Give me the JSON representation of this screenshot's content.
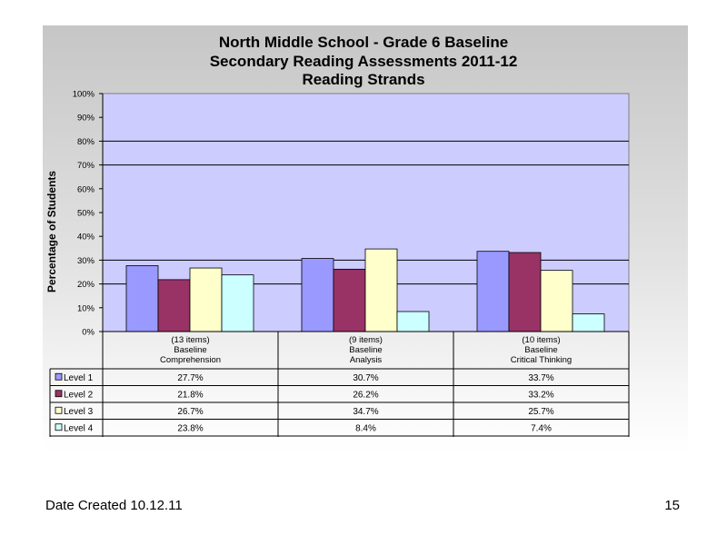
{
  "chart_data": {
    "type": "bar",
    "title": [
      "North Middle School - Grade 6 Baseline",
      "Secondary Reading Assessments 2011-12",
      "Reading Strands"
    ],
    "ylabel": "Percentage of Students",
    "ylim": [
      0,
      100
    ],
    "y_ticks": [
      "0%",
      "10%",
      "20%",
      "30%",
      "40%",
      "50%",
      "60%",
      "70%",
      "80%",
      "90%",
      "100%"
    ],
    "grid": true,
    "categories": [
      {
        "items": "(13 items)",
        "line1": "Baseline",
        "line2": "Comprehension"
      },
      {
        "items": "(9 items)",
        "line1": "Baseline",
        "line2": "Analysis"
      },
      {
        "items": "(10 items)",
        "line1": "Baseline",
        "line2": "Critical Thinking"
      }
    ],
    "series": [
      {
        "name": "Level 1",
        "color": "#9999ff",
        "values": [
          27.7,
          30.7,
          33.7
        ],
        "labels": [
          "27.7%",
          "30.7%",
          "33.7%"
        ]
      },
      {
        "name": "Level 2",
        "color": "#993366",
        "values": [
          21.8,
          26.2,
          33.2
        ],
        "labels": [
          "21.8%",
          "26.2%",
          "33.2%"
        ]
      },
      {
        "name": "Level 3",
        "color": "#ffffcc",
        "values": [
          26.7,
          34.7,
          25.7
        ],
        "labels": [
          "26.7%",
          "34.7%",
          "25.7%"
        ]
      },
      {
        "name": "Level 4",
        "color": "#ccffff",
        "values": [
          23.8,
          8.4,
          7.4
        ],
        "labels": [
          "23.8%",
          "8.4%",
          "7.4%"
        ]
      }
    ],
    "plot_background": "#ccccff"
  },
  "footer": {
    "date": "Date Created  10.12.11",
    "page": "15"
  }
}
